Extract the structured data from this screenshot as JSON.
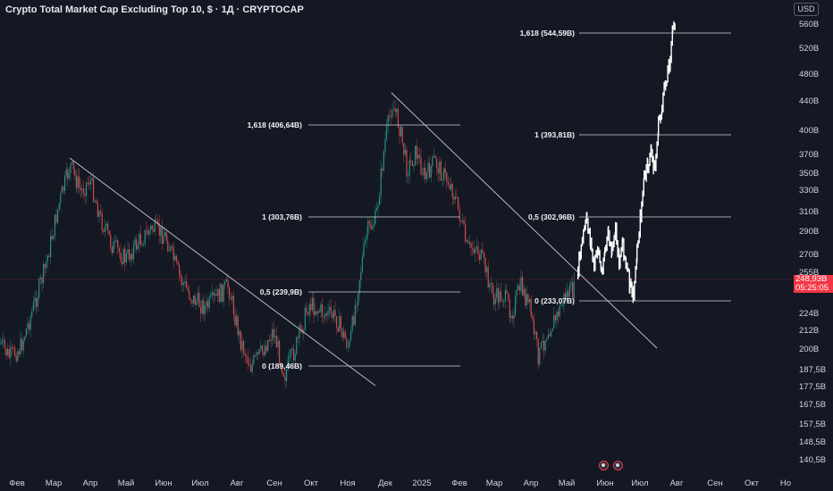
{
  "header": {
    "title": "Crypto Total Market Cap Excluding Top 10, $ · 1Д · CRYPTOCAP"
  },
  "price_axis": {
    "currency_label": "USD",
    "ticks": [
      "560B",
      "520B",
      "480B",
      "440B",
      "400B",
      "370B",
      "350B",
      "330B",
      "310B",
      "290B",
      "270B",
      "255B",
      "224B",
      "212B",
      "200B",
      "187,5B",
      "177,5B",
      "167,5B",
      "157,5B",
      "148,5B",
      "140,5B"
    ],
    "current_price": "248,93B",
    "countdown": "05:25:05"
  },
  "time_axis": {
    "ticks": [
      "Фев",
      "Мар",
      "Апр",
      "Май",
      "Июн",
      "Июл",
      "Авг",
      "Сен",
      "Окт",
      "Ноя",
      "Дек",
      "2025",
      "Фев",
      "Мар",
      "Апр",
      "Май",
      "Июн",
      "Июл",
      "Авг",
      "Сен",
      "Окт",
      "Но"
    ]
  },
  "fib_levels": {
    "set1": [
      "0,5 (239,9B)",
      "0 (189,46B)",
      "1 (303,76B)",
      "1,618 (406,64B)"
    ],
    "set2": [
      "1,618 (544,59B)",
      "1 (393,81B)",
      "0,5 (302,96B)",
      "0 (233,07B)"
    ]
  },
  "colors": {
    "background": "#131722",
    "up_candle": "#26a69a",
    "down_candle": "#ef5350",
    "projection": "#ffffff",
    "price_tag": "#f23645"
  },
  "event_icons": [
    "flag-event-icon",
    "flag-event-icon"
  ]
}
